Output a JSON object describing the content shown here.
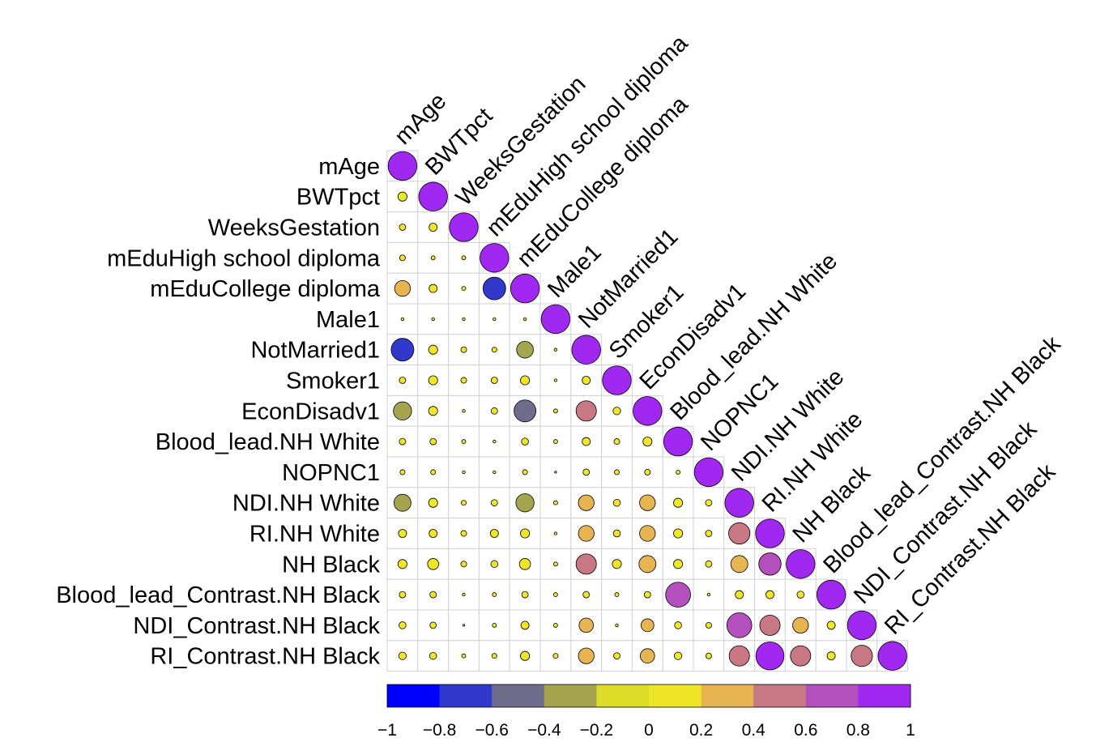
{
  "chart_data": {
    "type": "heatmap",
    "subtype": "correlation-matrix-lower-triangle-circles",
    "variables": [
      "mAge",
      "BWTpct",
      "WeeksGestation",
      "mEduHigh school diploma",
      "mEduCollege diploma",
      "Male1",
      "NotMarried1",
      "Smoker1",
      "EconDisadv1",
      "Blood_lead.NH White",
      "NOPNC1",
      "NDI.NH White",
      "RI.NH White",
      "NH Black",
      "Blood_lead_Contrast.NH Black",
      "NDI_Contrast.NH Black",
      "RI_Contrast.NH Black"
    ],
    "matrix": [
      [
        1
      ],
      [
        0.1,
        1
      ],
      [
        0.05,
        0.08,
        1
      ],
      [
        0.04,
        0.02,
        0.02,
        1
      ],
      [
        0.3,
        0.08,
        0.02,
        -0.62,
        1
      ],
      [
        0.01,
        0.01,
        0.01,
        0.01,
        0.01,
        1
      ],
      [
        -0.62,
        0.1,
        0.04,
        0.03,
        -0.34,
        0.01,
        1
      ],
      [
        0.05,
        0.1,
        0.04,
        0.05,
        0.1,
        0.01,
        0.08,
        1
      ],
      [
        -0.4,
        0.1,
        0.01,
        0.05,
        -0.58,
        0.02,
        0.5,
        0.07,
        1
      ],
      [
        0.05,
        0.05,
        0.02,
        0.01,
        0.06,
        0.02,
        0.08,
        0.04,
        0.1,
        1
      ],
      [
        0.03,
        0.03,
        0.01,
        0.01,
        0.03,
        0.005,
        0.05,
        0.03,
        0.04,
        0.02,
        1
      ],
      [
        -0.35,
        0.1,
        0.03,
        0.05,
        -0.4,
        0.02,
        0.3,
        0.06,
        0.3,
        0.1,
        0.05,
        1
      ],
      [
        0.08,
        0.08,
        0.04,
        0.08,
        0.1,
        0.01,
        0.3,
        0.06,
        0.3,
        0.1,
        0.05,
        0.55,
        1
      ],
      [
        0.1,
        0.15,
        0.04,
        0.06,
        0.15,
        0.02,
        0.5,
        0.1,
        0.35,
        0.1,
        0.05,
        0.35,
        0.6,
        1
      ],
      [
        0.05,
        0.05,
        0.01,
        0.02,
        0.05,
        0.02,
        0.05,
        0.02,
        0.05,
        0.75,
        0.01,
        0.08,
        0.08,
        0.06,
        1
      ],
      [
        0.06,
        0.05,
        0.005,
        0.02,
        0.08,
        0.02,
        0.25,
        0.01,
        0.2,
        0.06,
        0.04,
        0.75,
        0.5,
        0.3,
        0.08,
        1
      ],
      [
        0.07,
        0.06,
        0.02,
        0.03,
        0.1,
        0.03,
        0.3,
        0.05,
        0.25,
        0.07,
        0.04,
        0.5,
        0.95,
        0.5,
        0.08,
        0.55,
        1
      ]
    ],
    "colorbar": {
      "min": -1,
      "max": 1,
      "ticks": [
        "−1",
        "−0.8",
        "−0.6",
        "−0.4",
        "−0.2",
        "0",
        "0.2",
        "0.4",
        "0.6",
        "0.8",
        "1"
      ],
      "colors": [
        "#0000ff",
        "#3338cc",
        "#6e6e8c",
        "#a5a550",
        "#dcdc28",
        "#f0e628",
        "#e6b450",
        "#c87882",
        "#b450be",
        "#a028f0"
      ]
    },
    "legend_position": "bottom"
  }
}
